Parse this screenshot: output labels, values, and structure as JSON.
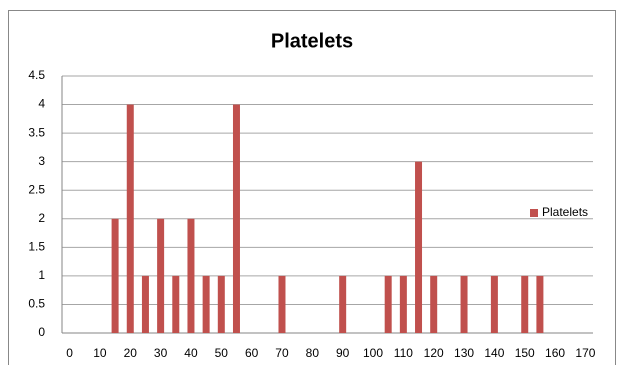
{
  "chart_data": {
    "type": "bar",
    "title": "Platelets",
    "categories": [
      "0",
      null,
      "10",
      null,
      "20",
      null,
      "30",
      null,
      "40",
      null,
      "50",
      null,
      "60",
      null,
      "70",
      null,
      "80",
      null,
      "90",
      null,
      "100",
      null,
      "110",
      null,
      "120",
      null,
      "130",
      null,
      "140",
      null,
      "150",
      null,
      "160",
      null,
      "170"
    ],
    "series": [
      {
        "name": "Platelets",
        "color": "#c0504d",
        "values": [
          0,
          0,
          0,
          2,
          4,
          1,
          2,
          1,
          2,
          1,
          1,
          4,
          0,
          0,
          1,
          0,
          0,
          0,
          1,
          0,
          0,
          1,
          1,
          3,
          1,
          0,
          1,
          0,
          1,
          0,
          1,
          1,
          0,
          0,
          0
        ]
      }
    ],
    "ylim": [
      0,
      4.5
    ],
    "yticks": [
      0,
      0.5,
      1,
      1.5,
      2,
      2.5,
      3,
      3.5,
      4,
      4.5
    ],
    "grid": true,
    "legend": "right"
  }
}
